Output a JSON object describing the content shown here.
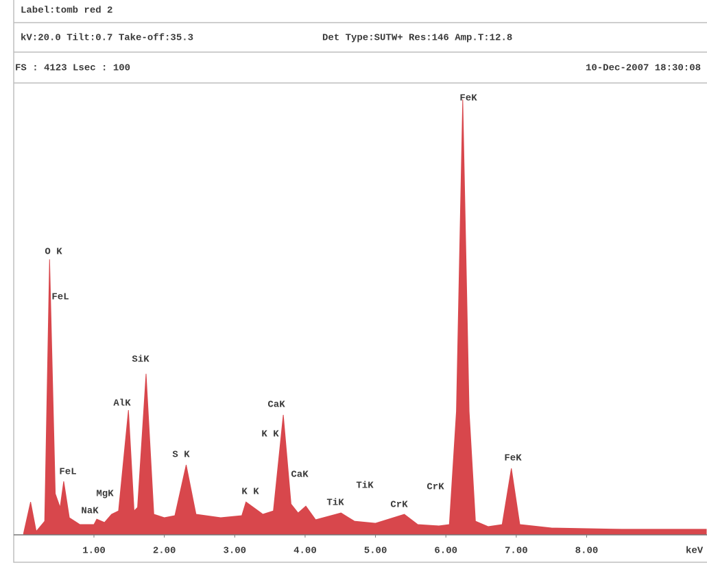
{
  "chart_data": {
    "type": "area",
    "title": "Label:tomb red 2",
    "subtitle": "kV:20.0 Tilt:0.7 Take-off:35.3",
    "detector": "Det Type:SUTW+ Res:146 Amp.T:12.8",
    "scale": "FS : 4123 Lsec : 100",
    "date": "10-Dec-2007 18:30:08",
    "x_label": "keV",
    "color": "#d8474c",
    "x": [
      0.0,
      0.1,
      0.18,
      0.3,
      0.37,
      0.45,
      0.52,
      0.57,
      0.65,
      0.8,
      1.0,
      1.04,
      1.15,
      1.25,
      1.35,
      1.49,
      1.57,
      1.62,
      1.74,
      1.85,
      2.0,
      2.15,
      2.31,
      2.45,
      2.8,
      3.1,
      3.16,
      3.4,
      3.55,
      3.69,
      3.8,
      3.9,
      4.01,
      4.15,
      4.51,
      4.7,
      5.0,
      5.41,
      5.6,
      5.9,
      6.05,
      6.15,
      6.24,
      6.33,
      6.42,
      6.6,
      6.8,
      6.93,
      7.05,
      7.5,
      8.5,
      9.7
    ],
    "values": [
      13,
      303,
      32,
      126,
      2541,
      379,
      253,
      493,
      158,
      95,
      95,
      145,
      114,
      190,
      221,
      1150,
      221,
      253,
      1485,
      190,
      158,
      177,
      645,
      190,
      158,
      177,
      303,
      190,
      221,
      1106,
      284,
      202,
      265,
      139,
      202,
      126,
      107,
      190,
      95,
      82,
      95,
      1138,
      4015,
      1138,
      126,
      76,
      95,
      613,
      95,
      63,
      51,
      51
    ],
    "xlim": [
      -0.14,
      9.71
    ],
    "ylim": [
      0,
      4123
    ],
    "xticks": [
      {
        "value": 1,
        "label": "1.00"
      },
      {
        "value": 2,
        "label": "2.00"
      },
      {
        "value": 3,
        "label": "3.00"
      },
      {
        "value": 4,
        "label": "4.00"
      },
      {
        "value": 5,
        "label": "5.00"
      },
      {
        "value": 6,
        "label": "6.00"
      },
      {
        "value": 7,
        "label": "7.00"
      },
      {
        "value": 8,
        "label": "8.00"
      }
    ],
    "annotations": [
      "O K",
      "FeL",
      "SiK",
      "AlK",
      "FeL",
      "MgK",
      "NaK",
      "S K",
      "K K",
      "K K",
      "CaK",
      "CaK",
      "TiK",
      "TiK",
      "CrK",
      "CrK",
      "FeK",
      "FeK"
    ]
  }
}
